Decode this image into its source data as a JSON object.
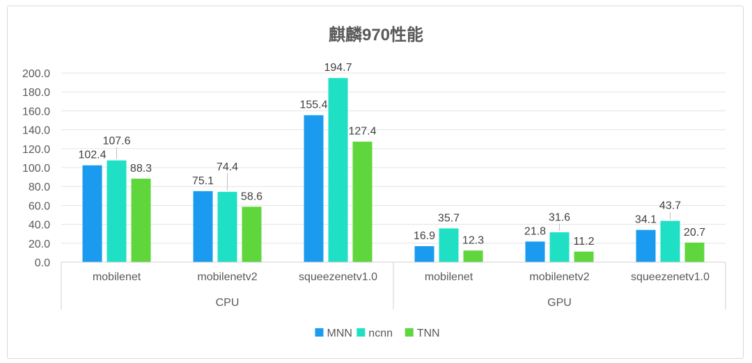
{
  "chart_data": {
    "type": "bar",
    "title": "麒麟970性能",
    "xlabel": "",
    "ylabel": "",
    "ylim": [
      0,
      200
    ],
    "yticks": [
      "0.0",
      "20.0",
      "40.0",
      "60.0",
      "80.0",
      "100.0",
      "120.0",
      "140.0",
      "160.0",
      "180.0",
      "200.0"
    ],
    "grid": true,
    "legend": "bottom",
    "groups": [
      {
        "name": "CPU",
        "categories": [
          "mobilenet",
          "mobilenetv2",
          "squeezenetv1.0"
        ]
      },
      {
        "name": "GPU",
        "categories": [
          "mobilenet",
          "mobilenetv2",
          "squeezenetv1.0"
        ]
      }
    ],
    "series": [
      {
        "name": "MNN",
        "color": "#1a9bef",
        "values": [
          102.4,
          75.1,
          155.4,
          16.9,
          21.8,
          34.1
        ],
        "labels": [
          "102.4",
          "75.1",
          "155.4",
          "16.9",
          "21.8",
          "34.1"
        ]
      },
      {
        "name": "ncnn",
        "color": "#1fe0c4",
        "values": [
          107.6,
          74.4,
          194.7,
          35.7,
          31.6,
          43.7
        ],
        "labels": [
          "107.6",
          "74.4",
          "194.7",
          "35.7",
          "31.6",
          "43.7"
        ]
      },
      {
        "name": "TNN",
        "color": "#5ed63c",
        "values": [
          88.3,
          58.6,
          127.4,
          12.3,
          11.2,
          20.7
        ],
        "labels": [
          "88.3",
          "58.6",
          "127.4",
          "12.3",
          "11.2",
          "20.7"
        ]
      }
    ]
  }
}
